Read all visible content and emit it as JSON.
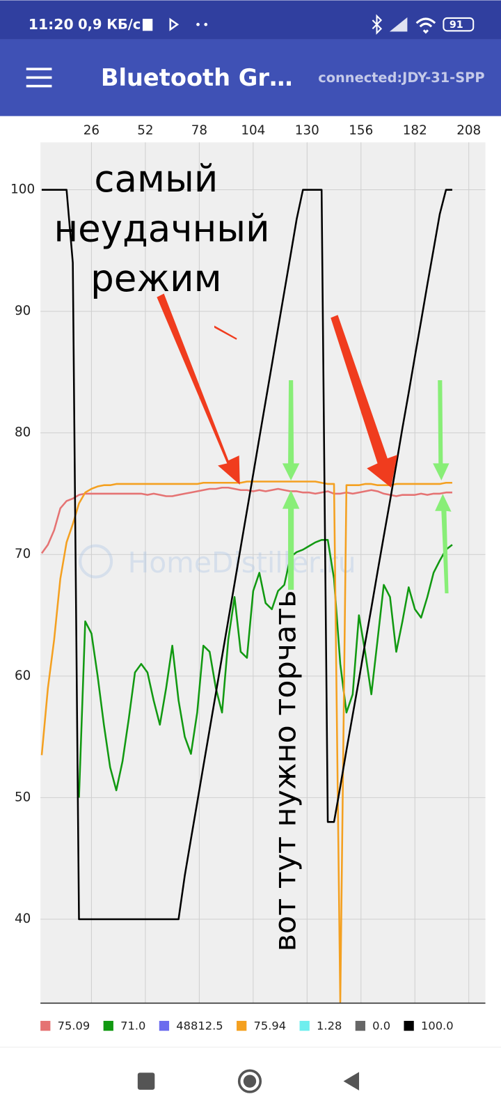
{
  "status_bar": {
    "time": "11:20",
    "speed": "0,9 КБ/с",
    "battery": "91"
  },
  "app_bar": {
    "title": "Bluetooth Gr…",
    "status": "connected:JDY-31-SPP"
  },
  "chart_data": {
    "type": "line",
    "annotations": {
      "note_lines": [
        "самый",
        "неудачный",
        "режим"
      ],
      "vertical_note": "вот тут нужно торчать",
      "watermark": "HomeDistiller.ru"
    },
    "x": [
      2,
      5,
      8,
      11,
      14,
      17,
      20,
      23,
      26,
      29,
      32,
      35,
      38,
      41,
      44,
      47,
      50,
      53,
      56,
      59,
      62,
      65,
      68,
      71,
      74,
      77,
      80,
      83,
      86,
      89,
      92,
      95,
      98,
      101,
      104,
      107,
      110,
      113,
      116,
      119,
      122,
      125,
      128,
      131,
      134,
      137,
      140,
      143,
      146,
      149,
      152,
      155,
      158,
      161,
      164,
      167,
      170,
      173,
      176,
      179,
      182,
      185,
      188,
      191,
      194,
      197,
      200
    ],
    "xlim": [
      1.4,
      216
    ],
    "xticks": [
      26,
      52,
      78,
      104,
      130,
      156,
      182,
      208
    ],
    "ylim": [
      33.1,
      103.9
    ],
    "yticks": [
      40,
      50,
      60,
      70,
      80,
      90,
      100
    ],
    "grid": true,
    "series": [
      {
        "name": "75.09",
        "color": "#e57373",
        "values": [
          70.1,
          70.8,
          72.0,
          73.8,
          74.4,
          74.6,
          74.9,
          75.0,
          75.0,
          75.0,
          75.0,
          75.0,
          75.0,
          75.0,
          75.0,
          75.0,
          75.0,
          74.9,
          75.0,
          74.9,
          74.8,
          74.8,
          74.9,
          75.0,
          75.1,
          75.2,
          75.3,
          75.4,
          75.4,
          75.5,
          75.5,
          75.4,
          75.3,
          75.3,
          75.2,
          75.3,
          75.2,
          75.3,
          75.4,
          75.3,
          75.2,
          75.2,
          75.1,
          75.1,
          75.0,
          75.1,
          75.2,
          75.0,
          75.0,
          75.1,
          75.0,
          75.1,
          75.2,
          75.3,
          75.2,
          75.0,
          74.9,
          74.8,
          74.9,
          74.9,
          74.9,
          75.0,
          74.9,
          75.0,
          75.0,
          75.1,
          75.1
        ]
      },
      {
        "name": "71.0",
        "color": "#119911",
        "values": [
          null,
          null,
          null,
          null,
          null,
          null,
          50.0,
          64.5,
          63.5,
          60.0,
          56.0,
          52.5,
          50.6,
          53.0,
          56.5,
          60.3,
          61.0,
          60.3,
          58.0,
          56.0,
          59.0,
          62.5,
          58.0,
          55.0,
          53.6,
          57.0,
          62.5,
          62.0,
          59.0,
          57.0,
          63.0,
          66.5,
          62.0,
          61.5,
          67.0,
          68.5,
          66.0,
          65.5,
          67.0,
          67.5,
          69.8,
          70.2,
          70.4,
          70.7,
          71.0,
          71.2,
          71.2,
          68.0,
          61.0,
          57.0,
          58.5,
          65.0,
          62.0,
          58.5,
          63.0,
          67.5,
          66.5,
          62.0,
          64.5,
          67.3,
          65.5,
          64.8,
          66.5,
          68.5,
          69.5,
          70.4,
          70.8
        ]
      },
      {
        "name": "48812.5",
        "color": "#6b6bee",
        "values": [
          null,
          null,
          null,
          null,
          null,
          null,
          null,
          null,
          null,
          null,
          null,
          null,
          null,
          null,
          null,
          null,
          null,
          null,
          null,
          null,
          null,
          null,
          null,
          null,
          null,
          null,
          null,
          null,
          null,
          null,
          null,
          null,
          null,
          null,
          null,
          null,
          null,
          null,
          null,
          null,
          null,
          null,
          null,
          null,
          null,
          null,
          null,
          null,
          null,
          null,
          null,
          null,
          null,
          null,
          null,
          null,
          null,
          null,
          null,
          null,
          null,
          null,
          null,
          null,
          null,
          null,
          null
        ]
      },
      {
        "name": "75.94",
        "color": "#f4a020",
        "values": [
          53.5,
          59.0,
          63.0,
          68.0,
          71.0,
          72.5,
          74.2,
          75.1,
          75.4,
          75.6,
          75.7,
          75.7,
          75.8,
          75.8,
          75.8,
          75.8,
          75.8,
          75.8,
          75.8,
          75.8,
          75.8,
          75.8,
          75.8,
          75.8,
          75.8,
          75.8,
          75.9,
          75.9,
          75.9,
          75.9,
          75.9,
          75.9,
          75.9,
          76.0,
          76.0,
          76.0,
          76.0,
          76.0,
          76.0,
          76.0,
          76.0,
          76.0,
          76.0,
          76.0,
          76.0,
          75.9,
          75.8,
          75.8,
          33.2,
          75.7,
          75.7,
          75.7,
          75.8,
          75.8,
          75.7,
          75.7,
          75.7,
          75.8,
          75.8,
          75.8,
          75.8,
          75.8,
          75.8,
          75.8,
          75.8,
          75.9,
          75.9
        ]
      },
      {
        "name": "1.28",
        "color": "#6eeeee",
        "values": [
          null,
          null,
          null,
          null,
          null,
          null,
          null,
          null,
          null,
          null,
          null,
          null,
          null,
          null,
          null,
          null,
          null,
          null,
          null,
          null,
          null,
          null,
          null,
          null,
          null,
          null,
          null,
          null,
          null,
          null,
          null,
          null,
          null,
          null,
          null,
          null,
          null,
          null,
          null,
          null,
          null,
          null,
          null,
          null,
          null,
          null,
          null,
          null,
          null,
          null,
          null,
          null,
          null,
          null,
          null,
          null,
          null,
          null,
          null,
          null,
          null,
          null,
          null,
          null,
          null,
          null,
          null
        ]
      },
      {
        "name": "0.0",
        "color": "#666666",
        "values": [
          null,
          null,
          null,
          null,
          null,
          null,
          null,
          null,
          null,
          null,
          null,
          null,
          null,
          null,
          null,
          null,
          null,
          null,
          null,
          null,
          null,
          null,
          null,
          null,
          null,
          null,
          null,
          null,
          null,
          null,
          null,
          null,
          null,
          null,
          null,
          null,
          null,
          null,
          null,
          null,
          null,
          null,
          null,
          null,
          null,
          null,
          null,
          null,
          null,
          null,
          null,
          null,
          null,
          null,
          null,
          null,
          null,
          null,
          null,
          null,
          null,
          null,
          null,
          null,
          null,
          null,
          null
        ]
      },
      {
        "name": "100.0",
        "color": "#000000",
        "values": [
          100,
          100,
          100,
          100,
          100,
          94,
          40,
          40,
          40,
          40,
          40,
          40,
          40,
          40,
          40,
          40,
          40,
          40,
          40,
          40,
          40,
          40,
          40,
          43.6,
          46.6,
          49.6,
          52.6,
          55.6,
          58.6,
          61.6,
          64.6,
          67.6,
          70.6,
          73.6,
          76.6,
          79.6,
          82.6,
          85.6,
          88.6,
          91.6,
          94.6,
          97.6,
          100,
          100,
          100,
          100,
          48,
          48,
          50.9,
          53.9,
          56.8,
          59.7,
          62.7,
          65.6,
          68.6,
          71.5,
          74.4,
          77.4,
          80.4,
          83.3,
          86.3,
          89.2,
          92.2,
          95.1,
          98,
          100,
          100
        ]
      }
    ]
  }
}
